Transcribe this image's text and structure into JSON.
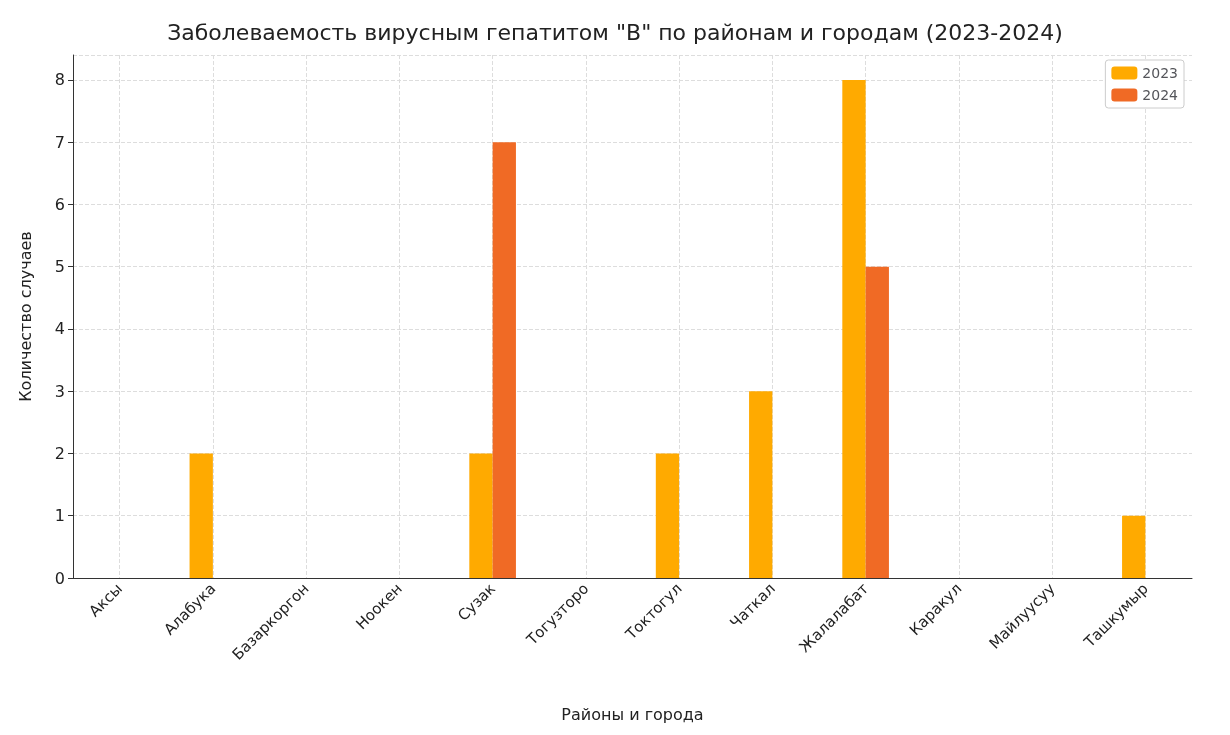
{
  "chart_data": {
    "type": "bar",
    "title": "Заболеваемость вирусным гепатитом \"В\" по районам и городам (2023-2024)",
    "xlabel": "Районы и города",
    "ylabel": "Количество случаев",
    "categories": [
      "Аксы",
      "Алабука",
      "Базаркоргон",
      "Ноокен",
      "Сузак",
      "Тогузторо",
      "Токтогул",
      "Чаткал",
      "Жалалабат",
      "Каракул",
      "Майлуусуу",
      "Ташкумыр"
    ],
    "series": [
      {
        "name": "2023",
        "color": "#ffaa00",
        "values": [
          0,
          2,
          0,
          0,
          2,
          0,
          2,
          3,
          8,
          0,
          0,
          1
        ]
      },
      {
        "name": "2024",
        "color": "#f06a25",
        "values": [
          0,
          0,
          0,
          0,
          7,
          0,
          0,
          0,
          5,
          0,
          0,
          0
        ]
      }
    ],
    "ylim": [
      0,
      8.4
    ],
    "yticks": [
      0,
      1,
      2,
      3,
      4,
      5,
      6,
      7,
      8
    ],
    "grid": true,
    "legend": "top right"
  }
}
